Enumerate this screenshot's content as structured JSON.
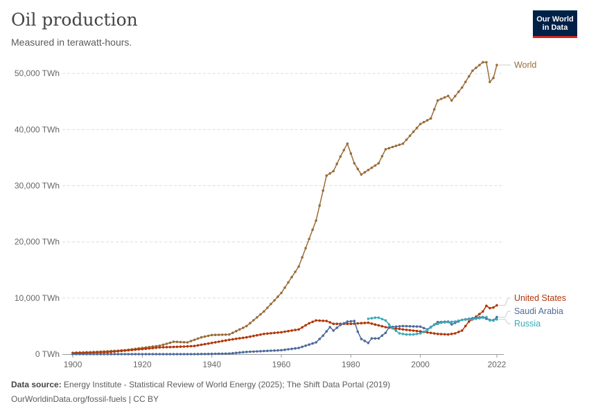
{
  "header": {
    "title": "Oil production",
    "subtitle": "Measured in terawatt-hours.",
    "logo_line1": "Our World",
    "logo_line2": "in Data"
  },
  "footer": {
    "source_label": "Data source:",
    "source_text": "Energy Institute - Statistical Review of World Energy (2025); The Shift Data Portal (2019)",
    "credit": "OurWorldinData.org/fossil-fuels | CC BY"
  },
  "chart_data": {
    "type": "line",
    "title": "Oil production",
    "ylabel": "",
    "xlabel": "",
    "xlim": [
      1897,
      2024
    ],
    "ylim": [
      0,
      52000
    ],
    "x_ticks": [
      1900,
      1920,
      1940,
      1960,
      1980,
      2000,
      2022
    ],
    "y_ticks": [
      {
        "value": 0,
        "label": "0 TWh"
      },
      {
        "value": 10000,
        "label": "10,000 TWh"
      },
      {
        "value": 20000,
        "label": "20,000 TWh"
      },
      {
        "value": 30000,
        "label": "30,000 TWh"
      },
      {
        "value": 40000,
        "label": "40,000 TWh"
      },
      {
        "value": 50000,
        "label": "50,000 TWh"
      }
    ],
    "grid": true,
    "legend": "right-end labels",
    "series": [
      {
        "name": "World",
        "color": "#996d39",
        "points": [
          [
            1900,
            250
          ],
          [
            1905,
            350
          ],
          [
            1910,
            500
          ],
          [
            1915,
            700
          ],
          [
            1920,
            1100
          ],
          [
            1925,
            1500
          ],
          [
            1929,
            2200
          ],
          [
            1933,
            2100
          ],
          [
            1937,
            3000
          ],
          [
            1940,
            3400
          ],
          [
            1945,
            3500
          ],
          [
            1950,
            5000
          ],
          [
            1955,
            7600
          ],
          [
            1960,
            10900
          ],
          [
            1965,
            15600
          ],
          [
            1970,
            23800
          ],
          [
            1973,
            31800
          ],
          [
            1975,
            32600
          ],
          [
            1977,
            35200
          ],
          [
            1979,
            37500
          ],
          [
            1981,
            34000
          ],
          [
            1983,
            32000
          ],
          [
            1985,
            32800
          ],
          [
            1988,
            34000
          ],
          [
            1990,
            36500
          ],
          [
            1995,
            37500
          ],
          [
            2000,
            41000
          ],
          [
            2003,
            42000
          ],
          [
            2005,
            45200
          ],
          [
            2008,
            46000
          ],
          [
            2009,
            45200
          ],
          [
            2012,
            47500
          ],
          [
            2015,
            50500
          ],
          [
            2018,
            52000
          ],
          [
            2019,
            52000
          ],
          [
            2020,
            48500
          ],
          [
            2021,
            49200
          ],
          [
            2022,
            51500
          ]
        ]
      },
      {
        "name": "United States",
        "color": "#b13507",
        "points": [
          [
            1900,
            150
          ],
          [
            1910,
            350
          ],
          [
            1920,
            900
          ],
          [
            1925,
            1200
          ],
          [
            1930,
            1300
          ],
          [
            1935,
            1450
          ],
          [
            1940,
            2000
          ],
          [
            1945,
            2550
          ],
          [
            1950,
            3000
          ],
          [
            1955,
            3600
          ],
          [
            1960,
            3900
          ],
          [
            1965,
            4400
          ],
          [
            1968,
            5500
          ],
          [
            1970,
            6000
          ],
          [
            1973,
            5900
          ],
          [
            1975,
            5400
          ],
          [
            1980,
            5400
          ],
          [
            1985,
            5600
          ],
          [
            1990,
            4800
          ],
          [
            1995,
            4400
          ],
          [
            2000,
            4050
          ],
          [
            2005,
            3600
          ],
          [
            2008,
            3500
          ],
          [
            2010,
            3700
          ],
          [
            2012,
            4200
          ],
          [
            2014,
            5800
          ],
          [
            2015,
            6200
          ],
          [
            2018,
            7600
          ],
          [
            2019,
            8600
          ],
          [
            2020,
            8200
          ],
          [
            2021,
            8300
          ],
          [
            2022,
            8700
          ]
        ]
      },
      {
        "name": "Saudi Arabia",
        "color": "#4c6a9c",
        "points": [
          [
            1900,
            0
          ],
          [
            1935,
            0
          ],
          [
            1945,
            100
          ],
          [
            1950,
            400
          ],
          [
            1955,
            550
          ],
          [
            1960,
            700
          ],
          [
            1965,
            1100
          ],
          [
            1970,
            2100
          ],
          [
            1972,
            3300
          ],
          [
            1974,
            4800
          ],
          [
            1975,
            4200
          ],
          [
            1977,
            5200
          ],
          [
            1979,
            5800
          ],
          [
            1981,
            5900
          ],
          [
            1982,
            4000
          ],
          [
            1983,
            2700
          ],
          [
            1985,
            2000
          ],
          [
            1986,
            2800
          ],
          [
            1988,
            2800
          ],
          [
            1990,
            3800
          ],
          [
            1991,
            4800
          ],
          [
            1995,
            5000
          ],
          [
            2000,
            4900
          ],
          [
            2002,
            4400
          ],
          [
            2005,
            5700
          ],
          [
            2008,
            5800
          ],
          [
            2009,
            5300
          ],
          [
            2012,
            6100
          ],
          [
            2015,
            6400
          ],
          [
            2016,
            6500
          ],
          [
            2018,
            6600
          ],
          [
            2019,
            6300
          ],
          [
            2020,
            6100
          ],
          [
            2021,
            6000
          ],
          [
            2022,
            6600
          ]
        ]
      },
      {
        "name": "Russia",
        "color": "#38aaba",
        "points": [
          [
            1985,
            6300
          ],
          [
            1987,
            6500
          ],
          [
            1988,
            6500
          ],
          [
            1990,
            6000
          ],
          [
            1992,
            4600
          ],
          [
            1994,
            3700
          ],
          [
            1996,
            3500
          ],
          [
            1998,
            3500
          ],
          [
            2000,
            3700
          ],
          [
            2002,
            4300
          ],
          [
            2004,
            5200
          ],
          [
            2006,
            5600
          ],
          [
            2008,
            5700
          ],
          [
            2010,
            5800
          ],
          [
            2012,
            6100
          ],
          [
            2014,
            6200
          ],
          [
            2016,
            6300
          ],
          [
            2018,
            6500
          ],
          [
            2019,
            6600
          ],
          [
            2020,
            6000
          ],
          [
            2021,
            6100
          ],
          [
            2022,
            6200
          ]
        ]
      }
    ]
  }
}
